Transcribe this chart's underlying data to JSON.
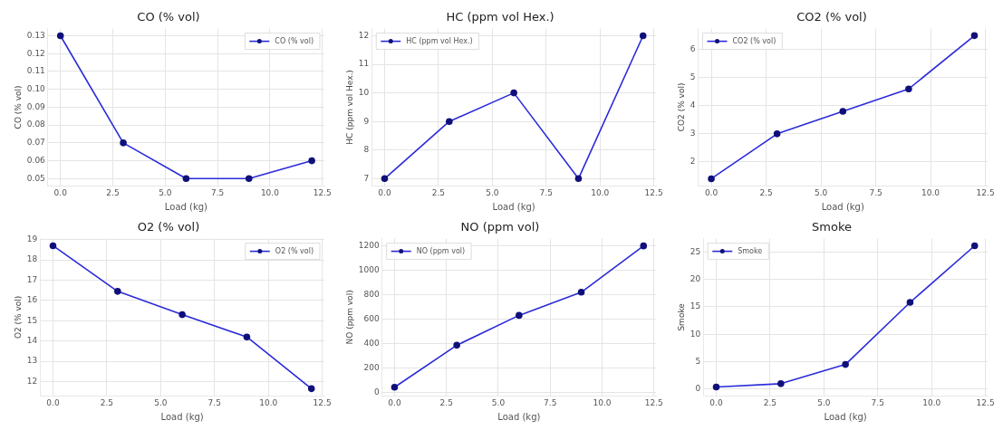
{
  "chart_data": [
    {
      "type": "line",
      "title": "CO (% vol)",
      "xlabel": "Load (kg)",
      "ylabel": "CO (% vol)",
      "x": [
        0,
        3,
        6,
        9,
        12
      ],
      "xlim": [
        -0.6,
        12.6
      ],
      "xticks": [
        {
          "value": 0,
          "label": "0.0"
        },
        2.5,
        {
          "value": 5,
          "label": "5.0"
        },
        7.5,
        {
          "value": 10,
          "label": "10.0"
        },
        12.5
      ],
      "ylim": [
        0.046,
        0.134
      ],
      "yticks": [
        0.05,
        0.06,
        0.07,
        0.08,
        0.09,
        {
          "value": 0.1,
          "label": "0.10"
        },
        0.11,
        0.12,
        0.13
      ],
      "grid": true,
      "legend": "top right",
      "marker": "circle",
      "series": [
        {
          "name": "CO (% vol)",
          "color": "#2b2bd9",
          "values": [
            0.13,
            0.07,
            0.05,
            0.05,
            0.06
          ]
        }
      ]
    },
    {
      "type": "line",
      "title": "HC (ppm vol Hex.)",
      "xlabel": "Load (kg)",
      "ylabel": "HC (ppm vol Hex.)",
      "x": [
        0,
        3,
        6,
        9,
        12
      ],
      "xlim": [
        -0.6,
        12.6
      ],
      "xticks": [
        {
          "value": 0,
          "label": "0.0"
        },
        2.5,
        {
          "value": 5,
          "label": "5.0"
        },
        7.5,
        {
          "value": 10,
          "label": "10.0"
        },
        12.5
      ],
      "ylim": [
        6.75,
        12.25
      ],
      "yticks": [
        7,
        8,
        9,
        10,
        11,
        12
      ],
      "grid": true,
      "legend": "top left",
      "marker": "circle",
      "series": [
        {
          "name": "HC (ppm vol Hex.)",
          "color": "#2b2bd9",
          "values": [
            7,
            9,
            10,
            7,
            12
          ]
        }
      ]
    },
    {
      "type": "line",
      "title": "CO2 (% vol)",
      "xlabel": "Load (kg)",
      "ylabel": "CO2 (% vol)",
      "x": [
        0,
        3,
        6,
        9,
        12
      ],
      "xlim": [
        -0.6,
        12.6
      ],
      "xticks": [
        {
          "value": 0,
          "label": "0.0"
        },
        2.5,
        {
          "value": 5,
          "label": "5.0"
        },
        7.5,
        {
          "value": 10,
          "label": "10.0"
        },
        12.5
      ],
      "ylim": [
        1.15,
        6.75
      ],
      "yticks": [
        2,
        3,
        4,
        5,
        6
      ],
      "grid": true,
      "legend": "top left",
      "marker": "circle",
      "series": [
        {
          "name": "CO2 (% vol)",
          "color": "#2b2bd9",
          "values": [
            1.4,
            3.0,
            3.8,
            4.6,
            6.5
          ]
        }
      ]
    },
    {
      "type": "line",
      "title": "O2 (% vol)",
      "xlabel": "Load (kg)",
      "ylabel": "O2 (% vol)",
      "x": [
        0,
        3,
        6,
        9,
        12
      ],
      "xlim": [
        -0.6,
        12.6
      ],
      "xticks": [
        {
          "value": 0,
          "label": "0.0"
        },
        2.5,
        {
          "value": 5,
          "label": "5.0"
        },
        7.5,
        {
          "value": 10,
          "label": "10.0"
        },
        12.5
      ],
      "ylim": [
        11.3,
        19.05
      ],
      "yticks": [
        12,
        13,
        14,
        15,
        16,
        17,
        18,
        19
      ],
      "grid": true,
      "legend": "top right",
      "marker": "circle",
      "series": [
        {
          "name": "O2 (% vol)",
          "color": "#2b2bd9",
          "values": [
            18.7,
            16.45,
            15.3,
            14.2,
            11.65
          ]
        }
      ]
    },
    {
      "type": "line",
      "title": "NO (ppm vol)",
      "xlabel": "Load (kg)",
      "ylabel": "NO (ppm vol)",
      "x": [
        0,
        3,
        6,
        9,
        12
      ],
      "xlim": [
        -0.6,
        12.6
      ],
      "xticks": [
        {
          "value": 0,
          "label": "0.0"
        },
        2.5,
        {
          "value": 5,
          "label": "5.0"
        },
        7.5,
        {
          "value": 10,
          "label": "10.0"
        },
        12.5
      ],
      "ylim": [
        -30,
        1260
      ],
      "yticks": [
        0,
        200,
        400,
        600,
        800,
        1000,
        1200
      ],
      "grid": true,
      "legend": "top left",
      "marker": "circle",
      "series": [
        {
          "name": "NO (ppm vol)",
          "color": "#2b2bd9",
          "values": [
            40,
            385,
            630,
            820,
            1200
          ]
        }
      ]
    },
    {
      "type": "line",
      "title": "Smoke",
      "xlabel": "Load (kg)",
      "ylabel": "Smoke",
      "x": [
        0,
        3,
        6,
        9,
        12
      ],
      "xlim": [
        -0.6,
        12.6
      ],
      "xticks": [
        {
          "value": 0,
          "label": "0.0"
        },
        2.5,
        {
          "value": 5,
          "label": "5.0"
        },
        7.5,
        {
          "value": 10,
          "label": "10.0"
        },
        12.5
      ],
      "ylim": [
        -1.2,
        27.4
      ],
      "yticks": [
        0,
        5,
        10,
        15,
        20,
        25
      ],
      "grid": true,
      "legend": "top left",
      "marker": "circle",
      "series": [
        {
          "name": "Smoke",
          "color": "#2b2bd9",
          "values": [
            0.4,
            1.0,
            4.5,
            15.8,
            26.1
          ]
        }
      ]
    }
  ]
}
